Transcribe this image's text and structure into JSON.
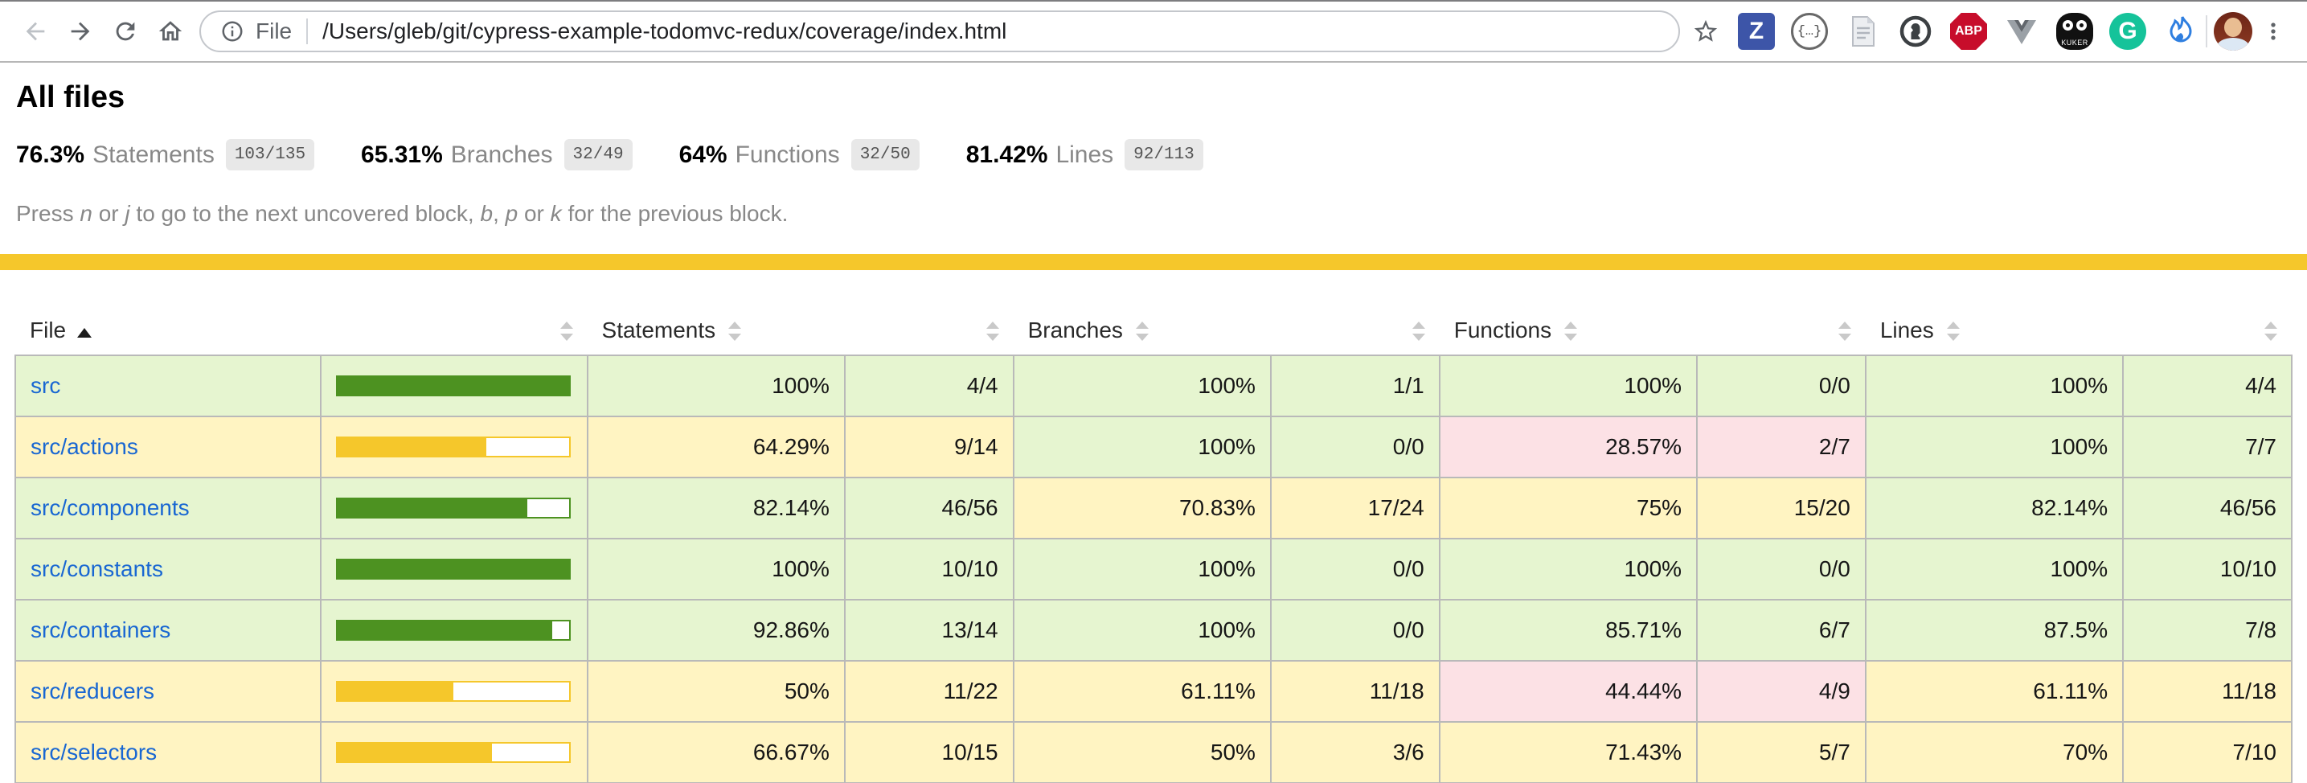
{
  "colors": {
    "high_bg": "#e6f5d0",
    "medium_bg": "#fff4c2",
    "low_bg": "#fce1e5",
    "bar_high": "#4d9221",
    "bar_medium": "#f5c72b",
    "band": "#f5c72b"
  },
  "browser": {
    "scheme_label": "File",
    "url_path": "/Users/gleb/git/cypress-example-todomvc-redux/coverage/index.html",
    "extensions": [
      {
        "id": "zotero",
        "text": "Z"
      },
      {
        "id": "json-viewer",
        "text": "{…}"
      },
      {
        "id": "script-doc",
        "text": ""
      },
      {
        "id": "onepassword",
        "text": ""
      },
      {
        "id": "adblock-plus",
        "text": "ABP"
      },
      {
        "id": "vue-devtools",
        "text": ""
      },
      {
        "id": "kuker",
        "text": "KUKER"
      },
      {
        "id": "grammarly",
        "text": "G"
      },
      {
        "id": "blue-flame",
        "text": ""
      }
    ]
  },
  "report": {
    "title": "All files",
    "metrics": [
      {
        "pct": "76.3%",
        "label": "Statements",
        "frac": "103/135"
      },
      {
        "pct": "65.31%",
        "label": "Branches",
        "frac": "32/49"
      },
      {
        "pct": "64%",
        "label": "Functions",
        "frac": "32/50"
      },
      {
        "pct": "81.42%",
        "label": "Lines",
        "frac": "92/113"
      }
    ],
    "hint_segments": [
      {
        "t": "Press "
      },
      {
        "t": "n",
        "em": true
      },
      {
        "t": " or "
      },
      {
        "t": "j",
        "em": true
      },
      {
        "t": " to go to the next uncovered block, "
      },
      {
        "t": "b",
        "em": true
      },
      {
        "t": ", "
      },
      {
        "t": "p",
        "em": true
      },
      {
        "t": " or "
      },
      {
        "t": "k",
        "em": true
      },
      {
        "t": " for the previous block."
      }
    ]
  },
  "table": {
    "columns": [
      {
        "label": "File",
        "kind": "file",
        "sort": "asc"
      },
      {
        "label": "",
        "kind": "pic",
        "sort": "both"
      },
      {
        "label": "Statements",
        "kind": "pct",
        "metric": "statements",
        "sort": "both"
      },
      {
        "label": "",
        "kind": "abbr",
        "metric": "statements",
        "sort": "both"
      },
      {
        "label": "Branches",
        "kind": "pct",
        "metric": "branches",
        "sort": "both"
      },
      {
        "label": "",
        "kind": "abbr",
        "metric": "branches",
        "sort": "both"
      },
      {
        "label": "Functions",
        "kind": "pct",
        "metric": "functions",
        "sort": "both"
      },
      {
        "label": "",
        "kind": "abbr",
        "metric": "functions",
        "sort": "both"
      },
      {
        "label": "Lines",
        "kind": "pct",
        "metric": "lines",
        "sort": "both"
      },
      {
        "label": "",
        "kind": "abbr",
        "metric": "lines",
        "sort": "both"
      }
    ],
    "rows": [
      {
        "file": "src",
        "level": "high",
        "bar": {
          "pct": 100,
          "level": "high"
        },
        "statements": {
          "pct": "100%",
          "frac": "4/4",
          "level": "high"
        },
        "branches": {
          "pct": "100%",
          "frac": "1/1",
          "level": "high"
        },
        "functions": {
          "pct": "100%",
          "frac": "0/0",
          "level": "high"
        },
        "lines": {
          "pct": "100%",
          "frac": "4/4",
          "level": "high"
        }
      },
      {
        "file": "src/actions",
        "level": "medium",
        "bar": {
          "pct": 64.29,
          "level": "medium"
        },
        "statements": {
          "pct": "64.29%",
          "frac": "9/14",
          "level": "medium"
        },
        "branches": {
          "pct": "100%",
          "frac": "0/0",
          "level": "high"
        },
        "functions": {
          "pct": "28.57%",
          "frac": "2/7",
          "level": "low"
        },
        "lines": {
          "pct": "100%",
          "frac": "7/7",
          "level": "high"
        }
      },
      {
        "file": "src/components",
        "level": "high",
        "bar": {
          "pct": 82.14,
          "level": "high"
        },
        "statements": {
          "pct": "82.14%",
          "frac": "46/56",
          "level": "high"
        },
        "branches": {
          "pct": "70.83%",
          "frac": "17/24",
          "level": "medium"
        },
        "functions": {
          "pct": "75%",
          "frac": "15/20",
          "level": "medium"
        },
        "lines": {
          "pct": "82.14%",
          "frac": "46/56",
          "level": "high"
        }
      },
      {
        "file": "src/constants",
        "level": "high",
        "bar": {
          "pct": 100,
          "level": "high"
        },
        "statements": {
          "pct": "100%",
          "frac": "10/10",
          "level": "high"
        },
        "branches": {
          "pct": "100%",
          "frac": "0/0",
          "level": "high"
        },
        "functions": {
          "pct": "100%",
          "frac": "0/0",
          "level": "high"
        },
        "lines": {
          "pct": "100%",
          "frac": "10/10",
          "level": "high"
        }
      },
      {
        "file": "src/containers",
        "level": "high",
        "bar": {
          "pct": 92.86,
          "level": "high"
        },
        "statements": {
          "pct": "92.86%",
          "frac": "13/14",
          "level": "high"
        },
        "branches": {
          "pct": "100%",
          "frac": "0/0",
          "level": "high"
        },
        "functions": {
          "pct": "85.71%",
          "frac": "6/7",
          "level": "high"
        },
        "lines": {
          "pct": "87.5%",
          "frac": "7/8",
          "level": "high"
        }
      },
      {
        "file": "src/reducers",
        "level": "medium",
        "bar": {
          "pct": 50,
          "level": "medium"
        },
        "statements": {
          "pct": "50%",
          "frac": "11/22",
          "level": "medium"
        },
        "branches": {
          "pct": "61.11%",
          "frac": "11/18",
          "level": "medium"
        },
        "functions": {
          "pct": "44.44%",
          "frac": "4/9",
          "level": "low"
        },
        "lines": {
          "pct": "61.11%",
          "frac": "11/18",
          "level": "medium"
        }
      },
      {
        "file": "src/selectors",
        "level": "medium",
        "bar": {
          "pct": 66.67,
          "level": "medium"
        },
        "statements": {
          "pct": "66.67%",
          "frac": "10/15",
          "level": "medium"
        },
        "branches": {
          "pct": "50%",
          "frac": "3/6",
          "level": "medium"
        },
        "functions": {
          "pct": "71.43%",
          "frac": "5/7",
          "level": "medium"
        },
        "lines": {
          "pct": "70%",
          "frac": "7/10",
          "level": "medium"
        }
      }
    ]
  }
}
